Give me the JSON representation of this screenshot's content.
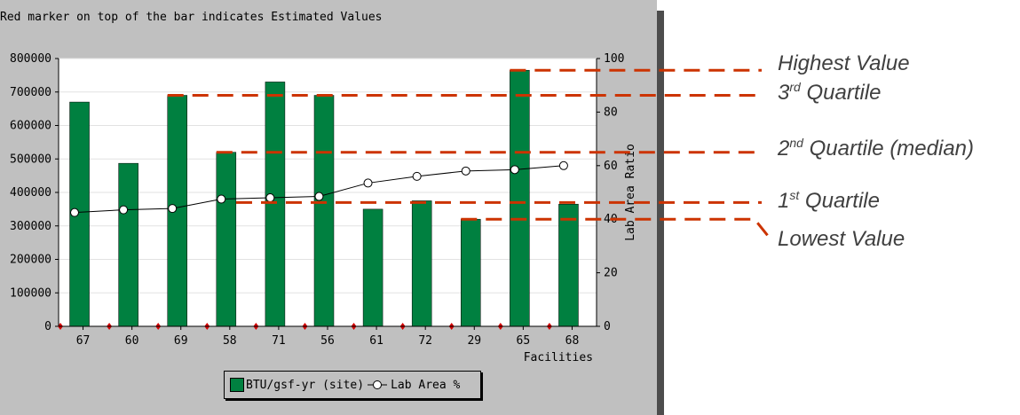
{
  "note": "Red marker on top of the bar indicates Estimated Values",
  "colors": {
    "bar": "#008040",
    "line": "#000000",
    "marker": "#d40000",
    "annotation_line": "#cc3300",
    "panel": "#c0c0c0",
    "plot_bg": "#ffffff"
  },
  "legend": {
    "bar_label": "BTU/gsf-yr (site)",
    "line_label": "Lab Area %"
  },
  "annotations": {
    "highest": "Highest Value",
    "q3_num": "3",
    "q3_sup": "rd",
    "q3_text": "Quartile",
    "q2_num": "2",
    "q2_sup": "nd",
    "q2_text": "Quartile (median)",
    "q1_num": "1",
    "q1_sup": "st",
    "q1_text": "Quartile",
    "lowest": "Lowest Value"
  },
  "chart_data": {
    "type": "bar",
    "categories": [
      "67",
      "60",
      "69",
      "58",
      "71",
      "56",
      "61",
      "72",
      "29",
      "65",
      "68"
    ],
    "series": [
      {
        "name": "BTU/gsf-yr (site)",
        "type": "bar",
        "axis": "left",
        "values": [
          670000,
          487000,
          690000,
          520000,
          730000,
          690000,
          350000,
          375000,
          320000,
          765000,
          365000
        ]
      },
      {
        "name": "Lab Area %",
        "type": "line",
        "axis": "right",
        "values": [
          42.5,
          43.5,
          44,
          47.5,
          48,
          48.5,
          53.5,
          56,
          58,
          58.5,
          60
        ]
      }
    ],
    "xlabel": "Facilities",
    "ylabel": "",
    "y2label": "Lab Area Ratio",
    "ylim": [
      0,
      800000
    ],
    "y2lim": [
      0,
      100
    ],
    "yticks": [
      "0",
      "100000",
      "200000",
      "300000",
      "400000",
      "500000",
      "600000",
      "700000",
      "800000"
    ],
    "y2ticks": [
      "0",
      "20",
      "40",
      "60",
      "80",
      "100"
    ],
    "grid": true,
    "legend_position": "bottom"
  }
}
